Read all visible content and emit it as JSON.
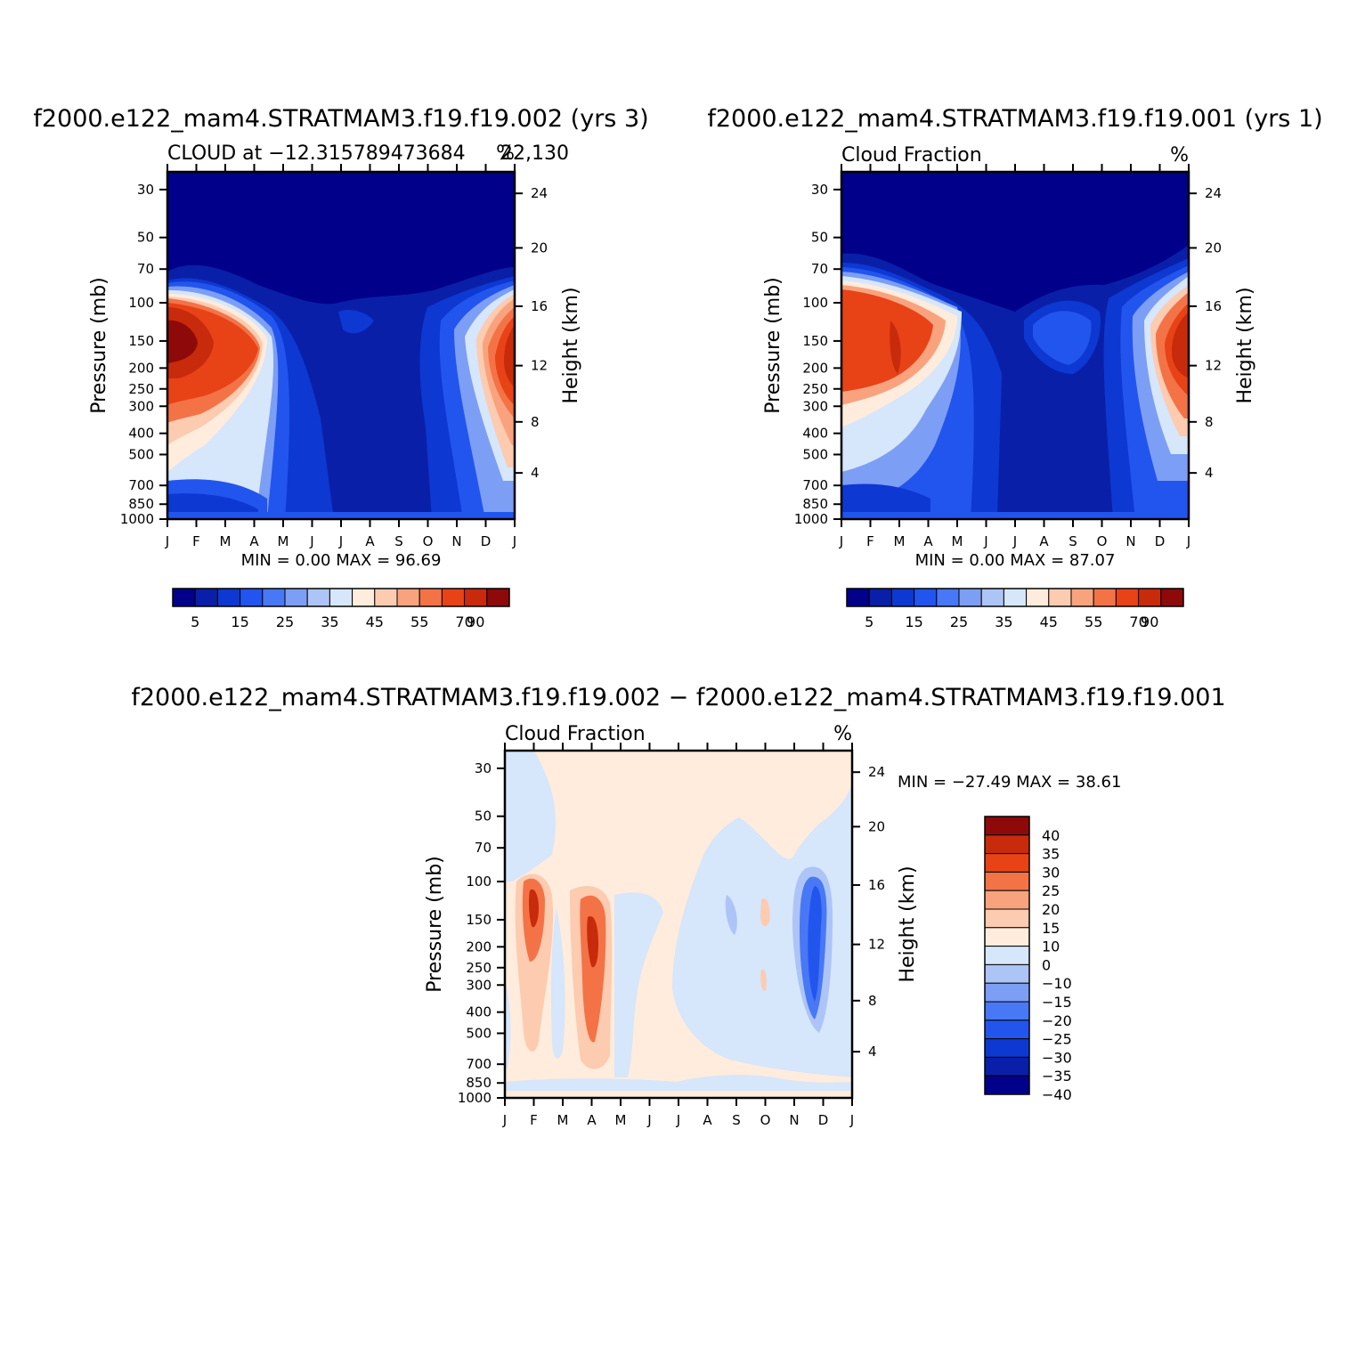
{
  "palette": {
    "abs": [
      "#00008b",
      "#0a1fa8",
      "#0d38d1",
      "#2255ee",
      "#4878f5",
      "#7d9ef5",
      "#adc4f7",
      "#d6e6fb",
      "#ffecdc",
      "#fccbb0",
      "#f9a37e",
      "#f37347",
      "#e84217",
      "#c82b0b",
      "#8e0a0a"
    ],
    "diff": [
      "#00008b",
      "#0a1fa8",
      "#0d38d1",
      "#2255ee",
      "#4878f5",
      "#7d9ef5",
      "#adc4f7",
      "#d6e6fb",
      "#ffecdc",
      "#fccbb0",
      "#f9a37e",
      "#f37347",
      "#e84217",
      "#c82b0b",
      "#8e0a0a"
    ]
  },
  "chart_data": [
    {
      "type": "heatmap",
      "panel": "top-left",
      "title": "f2000.e122_mam4.STRATMAM3.f19.f19.002 (yrs 3)",
      "subtitle_left": "CLOUD at −12.315789473684",
      "subtitle_right": "%",
      "subtitle_overlap": "22,130",
      "ylabel": "Pressure (mb)",
      "ylabel_right": "Height (km)",
      "x_ticks": [
        "J",
        "F",
        "M",
        "A",
        "M",
        "J",
        "J",
        "A",
        "S",
        "O",
        "N",
        "D",
        "J"
      ],
      "y_ticks": [
        "30",
        "50",
        "70",
        "100",
        "150",
        "200",
        "250",
        "300",
        "400",
        "500",
        "700",
        "850",
        "1000"
      ],
      "y_ticks_right": [
        "24",
        "20",
        "16",
        "12",
        "8",
        "4"
      ],
      "minmax": "MIN =    0.00  MAX =    96.69",
      "min": 0.0,
      "max": 96.69,
      "colorbar": {
        "orientation": "horizontal",
        "labels": [
          "5",
          "15",
          "25",
          "35",
          "45",
          "55",
          "70",
          "90"
        ]
      },
      "seasonal_shape": {
        "nh_peak_month": "Jan",
        "nh_peak_value": 96.69,
        "sh_minimum_months": "May-Oct",
        "values_units": "%"
      }
    },
    {
      "type": "heatmap",
      "panel": "top-right",
      "title": "f2000.e122_mam4.STRATMAM3.f19.f19.001 (yrs 1)",
      "subtitle_left": "Cloud Fraction",
      "subtitle_right": "%",
      "ylabel": "Pressure (mb)",
      "ylabel_right": "Height (km)",
      "x_ticks": [
        "J",
        "F",
        "M",
        "A",
        "M",
        "J",
        "J",
        "A",
        "S",
        "O",
        "N",
        "D",
        "J"
      ],
      "y_ticks": [
        "30",
        "50",
        "70",
        "100",
        "150",
        "200",
        "250",
        "300",
        "400",
        "500",
        "700",
        "850",
        "1000"
      ],
      "y_ticks_right": [
        "24",
        "20",
        "16",
        "12",
        "8",
        "4"
      ],
      "minmax": "MIN =    0.00  MAX =    87.07",
      "min": 0.0,
      "max": 87.07,
      "colorbar": {
        "orientation": "horizontal",
        "labels": [
          "5",
          "15",
          "25",
          "35",
          "45",
          "55",
          "70",
          "90"
        ]
      }
    },
    {
      "type": "heatmap",
      "panel": "bottom",
      "title": "f2000.e122_mam4.STRATMAM3.f19.f19.002 − f2000.e122_mam4.STRATMAM3.f19.f19.001",
      "subtitle_left": "Cloud Fraction",
      "subtitle_right": "%",
      "ylabel": "Pressure (mb)",
      "ylabel_right": "Height (km)",
      "x_ticks": [
        "J",
        "F",
        "M",
        "A",
        "M",
        "J",
        "J",
        "A",
        "S",
        "O",
        "N",
        "D",
        "J"
      ],
      "y_ticks": [
        "30",
        "50",
        "70",
        "100",
        "150",
        "200",
        "250",
        "300",
        "400",
        "500",
        "700",
        "850",
        "1000"
      ],
      "y_ticks_right": [
        "24",
        "20",
        "16",
        "12",
        "8",
        "4"
      ],
      "minmax": "MIN = −27.49  MAX =    38.61",
      "min": -27.49,
      "max": 38.61,
      "colorbar": {
        "orientation": "vertical",
        "labels": [
          "40",
          "35",
          "30",
          "25",
          "20",
          "15",
          "10",
          "0",
          "−10",
          "−15",
          "−20",
          "−25",
          "−30",
          "−35",
          "−40"
        ]
      }
    }
  ]
}
